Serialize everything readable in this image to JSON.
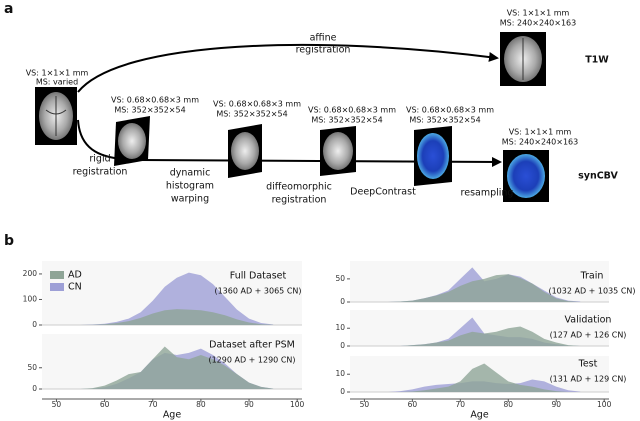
{
  "panel_labels": [
    "a",
    "b"
  ],
  "diagram": {
    "input": {
      "vs": "VS: 1×1×1 mm",
      "ms": "MS: varied"
    },
    "affine": [
      "affine",
      "registration"
    ],
    "t1w": {
      "vs": "VS: 1×1×1 mm",
      "ms": "MS: 240×240×163",
      "label": "T1W"
    },
    "rigid": [
      "rigid",
      "registration"
    ],
    "stages": [
      {
        "vs": "VS: 0.68×0.68×3 mm",
        "ms": "MS: 352×352×54"
      },
      {
        "vs": "VS: 0.68×0.68×3 mm",
        "ms": "MS: 352×352×54"
      },
      {
        "vs": "VS: 0.68×0.68×3 mm",
        "ms": "MS: 352×352×54"
      },
      {
        "vs": "VS: 0.68×0.68×3 mm",
        "ms": "MS: 352×352×54"
      }
    ],
    "dhw": [
      "dynamic",
      "histogram",
      "warping"
    ],
    "diffeo": [
      "diffeomorphic",
      "registration"
    ],
    "deepcontrast": "DeepContrast",
    "resampling": "resampling",
    "syncbv": {
      "vs": "VS: 1×1×1 mm",
      "ms": "MS: 240×240×163",
      "label": "synCBV"
    }
  },
  "chart_data": [
    {
      "type": "area",
      "annotations": [
        "Full Dataset",
        "(1360 AD + 3065 CN)"
      ],
      "x": [
        55,
        57.5,
        60,
        62.5,
        65,
        67.5,
        70,
        72.5,
        75,
        77.5,
        80,
        82.5,
        85,
        87.5,
        90,
        92.5,
        95
      ],
      "series": [
        {
          "name": "AD",
          "color": "#8fa597",
          "values": [
            0,
            1,
            3,
            8,
            15,
            28,
            45,
            58,
            62,
            60,
            58,
            50,
            38,
            22,
            10,
            3,
            1
          ]
        },
        {
          "name": "CN",
          "color": "#9d9fd6",
          "values": [
            0,
            2,
            5,
            12,
            25,
            50,
            95,
            150,
            185,
            205,
            195,
            160,
            110,
            60,
            25,
            8,
            2
          ]
        }
      ],
      "xlim": [
        47,
        101
      ],
      "ylim": [
        0,
        235
      ],
      "yticks": [
        0,
        100,
        200
      ]
    },
    {
      "type": "area",
      "annotations": [
        "Dataset after PSM",
        "(1290 AD + 1290 CN)"
      ],
      "x": [
        55,
        57.5,
        60,
        62.5,
        65,
        67.5,
        70,
        72.5,
        75,
        77.5,
        80,
        82.5,
        85,
        87.5,
        90,
        92.5,
        95
      ],
      "series": [
        {
          "color": "#8fa597",
          "values": [
            0,
            2,
            8,
            20,
            35,
            40,
            70,
            100,
            75,
            70,
            80,
            70,
            55,
            35,
            15,
            5,
            1
          ]
        },
        {
          "color": "#9d9fd6",
          "values": [
            0,
            1,
            4,
            12,
            25,
            40,
            70,
            85,
            80,
            85,
            95,
            80,
            60,
            35,
            15,
            5,
            1
          ]
        }
      ],
      "xlim": [
        47,
        101
      ],
      "ylim": [
        0,
        120
      ],
      "yticks": [
        0,
        50
      ],
      "xticks": [
        50,
        60,
        70,
        80,
        90,
        100
      ],
      "xlabel": "Age"
    },
    {
      "type": "area",
      "annotations": [
        "Train",
        "(1032 AD + 1035 CN)"
      ],
      "x": [
        55,
        57.5,
        60,
        62.5,
        65,
        67.5,
        70,
        72.5,
        75,
        77.5,
        80,
        82.5,
        85,
        87.5,
        90,
        92.5,
        95
      ],
      "series": [
        {
          "color": "#8fa597",
          "values": [
            0,
            1,
            3,
            8,
            14,
            22,
            35,
            45,
            50,
            58,
            60,
            52,
            40,
            22,
            8,
            2,
            0
          ]
        },
        {
          "color": "#9d9fd6",
          "values": [
            0,
            1,
            3,
            8,
            15,
            25,
            50,
            75,
            45,
            50,
            60,
            55,
            40,
            25,
            10,
            3,
            1
          ]
        }
      ],
      "xlim": [
        47,
        101
      ],
      "ylim": [
        0,
        80
      ],
      "yticks": [
        0,
        50
      ]
    },
    {
      "type": "area",
      "annotations": [
        "Validation",
        "(127 AD + 126 CN)"
      ],
      "x": [
        55,
        57.5,
        60,
        62.5,
        65,
        67.5,
        70,
        72.5,
        75,
        77.5,
        80,
        82.5,
        85,
        87.5,
        90,
        92.5,
        95
      ],
      "series": [
        {
          "color": "#8fa597",
          "values": [
            0,
            0,
            0.5,
            1,
            2,
            3,
            6,
            8,
            7,
            8,
            10,
            11,
            8,
            4,
            2,
            0.5,
            0
          ]
        },
        {
          "color": "#9d9fd6",
          "values": [
            0,
            0,
            0.5,
            1,
            2,
            4,
            10,
            16,
            7,
            6,
            5,
            5,
            4,
            2,
            1,
            0.3,
            0
          ]
        }
      ],
      "xlim": [
        47,
        101
      ],
      "ylim": [
        0,
        18
      ],
      "yticks": [
        0,
        10
      ]
    },
    {
      "type": "area",
      "annotations": [
        "Test",
        "(131 AD + 129 CN)"
      ],
      "x": [
        55,
        57.5,
        60,
        62.5,
        65,
        67.5,
        70,
        72.5,
        75,
        77.5,
        80,
        82.5,
        85,
        87.5,
        90,
        92.5,
        95
      ],
      "series": [
        {
          "color": "#8fa597",
          "values": [
            0,
            0,
            0.3,
            1,
            2,
            3,
            6,
            13,
            16,
            11,
            6,
            4,
            3,
            1.5,
            0.5,
            0,
            0
          ]
        },
        {
          "color": "#9d9fd6",
          "values": [
            0,
            0.5,
            1.5,
            3,
            4,
            4.5,
            5,
            6,
            6,
            5,
            4.5,
            5,
            7,
            6,
            3,
            1,
            0.2
          ]
        }
      ],
      "xlim": [
        47,
        101
      ],
      "ylim": [
        0,
        18
      ],
      "yticks": [
        0,
        10
      ],
      "xticks": [
        50,
        60,
        70,
        80,
        90,
        100
      ],
      "xlabel": "Age"
    }
  ]
}
